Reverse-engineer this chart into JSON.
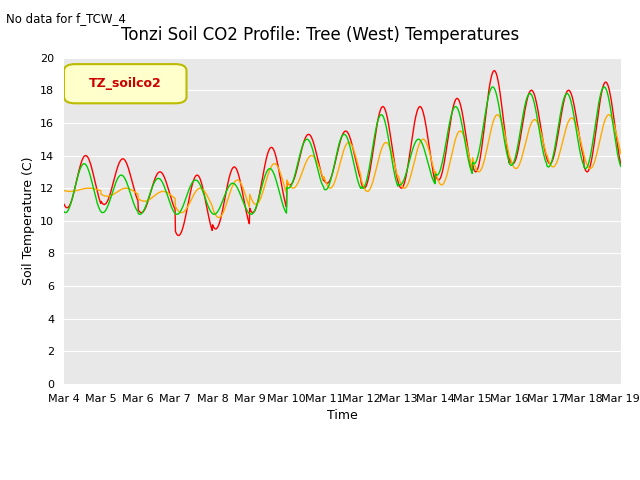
{
  "title": "Tonzi Soil CO2 Profile: Tree (West) Temperatures",
  "no_data_text": "No data for f_TCW_4",
  "xlabel": "Time",
  "ylabel": "Soil Temperature (C)",
  "ylim": [
    0,
    20
  ],
  "yticks": [
    0,
    2,
    4,
    6,
    8,
    10,
    12,
    14,
    16,
    18,
    20
  ],
  "x_tick_labels": [
    "Mar 4",
    "Mar 5",
    "Mar 6",
    "Mar 7",
    "Mar 8",
    "Mar 9",
    "Mar 10",
    "Mar 11",
    "Mar 12",
    "Mar 13",
    "Mar 14",
    "Mar 15",
    "Mar 16",
    "Mar 17",
    "Mar 18",
    "Mar 19"
  ],
  "legend_label": "TZ_soilco2",
  "legend_bg": "#ffffcc",
  "legend_text_color": "#cc0000",
  "legend_border_color": "#bbbb00",
  "line_colors": {
    "2cm": "#ff0000",
    "4cm": "#ffaa00",
    "8cm": "#00cc00"
  },
  "plot_bg": "#e8e8e8",
  "title_fontsize": 12,
  "axis_fontsize": 9,
  "tick_fontsize": 8,
  "daily_max_2cm": [
    14.0,
    13.8,
    13.0,
    12.8,
    13.3,
    14.5,
    15.3,
    15.5,
    17.0,
    17.0,
    17.5,
    19.2,
    18.0,
    18.0,
    18.5
  ],
  "daily_min_2cm": [
    10.8,
    11.0,
    10.5,
    9.1,
    9.5,
    10.5,
    12.2,
    12.3,
    12.0,
    12.0,
    12.5,
    13.0,
    13.5,
    13.5,
    13.0
  ],
  "daily_max_4cm": [
    12.0,
    12.0,
    11.8,
    12.0,
    12.5,
    13.5,
    14.0,
    14.8,
    14.8,
    15.0,
    15.5,
    16.5,
    16.2,
    16.3,
    16.5
  ],
  "daily_min_4cm": [
    11.8,
    11.5,
    11.2,
    10.5,
    10.2,
    11.0,
    12.0,
    12.0,
    11.8,
    12.0,
    12.2,
    13.0,
    13.2,
    13.3,
    13.2
  ],
  "daily_max_8cm": [
    13.5,
    12.8,
    12.6,
    12.5,
    12.3,
    13.2,
    15.0,
    15.3,
    16.5,
    15.0,
    17.0,
    18.2,
    17.8,
    17.8,
    18.2
  ],
  "daily_min_8cm": [
    10.5,
    10.5,
    10.4,
    10.4,
    10.4,
    10.4,
    12.0,
    11.9,
    12.0,
    12.2,
    12.8,
    13.5,
    13.4,
    13.3,
    13.2
  ]
}
